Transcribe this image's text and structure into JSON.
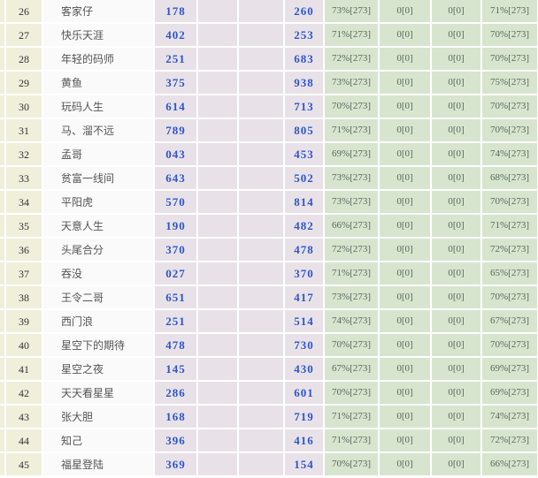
{
  "table": {
    "description": "lottery-forum-score-table",
    "column_names": [
      "row-edge",
      "rank",
      "nickname",
      "pick-a",
      "blank-a",
      "blank-b",
      "pick-b",
      "stat-1",
      "stat-2",
      "stat-3",
      "stat-4"
    ],
    "rows": [
      {
        "rank": "26",
        "name": "客家仔",
        "num1": "178",
        "num2": "260",
        "stat1": "73%[273]",
        "stat2": "0[0]",
        "stat3": "0[0]",
        "stat4": "71%[273]"
      },
      {
        "rank": "27",
        "name": "快乐天涯",
        "num1": "402",
        "num2": "253",
        "stat1": "71%[273]",
        "stat2": "0[0]",
        "stat3": "0[0]",
        "stat4": "70%[273]"
      },
      {
        "rank": "28",
        "name": "年轻的码师",
        "num1": "251",
        "num2": "683",
        "stat1": "72%[273]",
        "stat2": "0[0]",
        "stat3": "0[0]",
        "stat4": "70%[273]"
      },
      {
        "rank": "29",
        "name": "黄鱼",
        "num1": "375",
        "num2": "938",
        "stat1": "73%[273]",
        "stat2": "0[0]",
        "stat3": "0[0]",
        "stat4": "75%[273]"
      },
      {
        "rank": "30",
        "name": "玩码人生",
        "num1": "614",
        "num2": "713",
        "stat1": "70%[273]",
        "stat2": "0[0]",
        "stat3": "0[0]",
        "stat4": "70%[273]"
      },
      {
        "rank": "31",
        "name": "马、溜不远",
        "num1": "789",
        "num2": "805",
        "stat1": "71%[273]",
        "stat2": "0[0]",
        "stat3": "0[0]",
        "stat4": "70%[273]"
      },
      {
        "rank": "32",
        "name": "孟哥",
        "num1": "043",
        "num2": "453",
        "stat1": "69%[273]",
        "stat2": "0[0]",
        "stat3": "0[0]",
        "stat4": "74%[273]"
      },
      {
        "rank": "33",
        "name": "贫富一线间",
        "num1": "643",
        "num2": "502",
        "stat1": "73%[273]",
        "stat2": "0[0]",
        "stat3": "0[0]",
        "stat4": "68%[273]"
      },
      {
        "rank": "34",
        "name": "平阳虎",
        "num1": "570",
        "num2": "814",
        "stat1": "73%[273]",
        "stat2": "0[0]",
        "stat3": "0[0]",
        "stat4": "70%[273]"
      },
      {
        "rank": "35",
        "name": "天意人生",
        "num1": "190",
        "num2": "482",
        "stat1": "66%[273]",
        "stat2": "0[0]",
        "stat3": "0[0]",
        "stat4": "71%[273]"
      },
      {
        "rank": "36",
        "name": "头尾合分",
        "num1": "370",
        "num2": "478",
        "stat1": "72%[273]",
        "stat2": "0[0]",
        "stat3": "0[0]",
        "stat4": "72%[273]"
      },
      {
        "rank": "37",
        "name": "吞没",
        "num1": "027",
        "num2": "370",
        "stat1": "71%[273]",
        "stat2": "0[0]",
        "stat3": "0[0]",
        "stat4": "65%[273]"
      },
      {
        "rank": "38",
        "name": "王令二哥",
        "num1": "651",
        "num2": "417",
        "stat1": "73%[273]",
        "stat2": "0[0]",
        "stat3": "0[0]",
        "stat4": "70%[273]"
      },
      {
        "rank": "39",
        "name": "西门浪",
        "num1": "251",
        "num2": "514",
        "stat1": "74%[273]",
        "stat2": "0[0]",
        "stat3": "0[0]",
        "stat4": "67%[273]"
      },
      {
        "rank": "40",
        "name": "星空下的期待",
        "num1": "478",
        "num2": "730",
        "stat1": "70%[273]",
        "stat2": "0[0]",
        "stat3": "0[0]",
        "stat4": "70%[273]"
      },
      {
        "rank": "41",
        "name": "星空之夜",
        "num1": "145",
        "num2": "430",
        "stat1": "67%[273]",
        "stat2": "0[0]",
        "stat3": "0[0]",
        "stat4": "69%[273]"
      },
      {
        "rank": "42",
        "name": "天天看星星",
        "num1": "286",
        "num2": "601",
        "stat1": "70%[273]",
        "stat2": "0[0]",
        "stat3": "0[0]",
        "stat4": "69%[273]"
      },
      {
        "rank": "43",
        "name": "张大胆",
        "num1": "168",
        "num2": "719",
        "stat1": "71%[273]",
        "stat2": "0[0]",
        "stat3": "0[0]",
        "stat4": "74%[273]"
      },
      {
        "rank": "44",
        "name": "知己",
        "num1": "396",
        "num2": "416",
        "stat1": "71%[273]",
        "stat2": "0[0]",
        "stat3": "0[0]",
        "stat4": "72%[273]"
      },
      {
        "rank": "45",
        "name": "福星登陆",
        "num1": "369",
        "num2": "154",
        "stat1": "70%[273]",
        "stat2": "0[0]",
        "stat3": "0[0]",
        "stat4": "66%[273]"
      }
    ]
  },
  "colors": {
    "rank_column_bg": "#f0efdb",
    "name_column_bg": "#fbfafb",
    "number_column_bg": "#e8e2e8",
    "stat_column_bg": "#d7e5cf",
    "number_text": "#2f55cc",
    "rank_text": "#333333",
    "name_text": "#555555",
    "stat_text": "#596959",
    "grid_gap": "#ffffff"
  }
}
